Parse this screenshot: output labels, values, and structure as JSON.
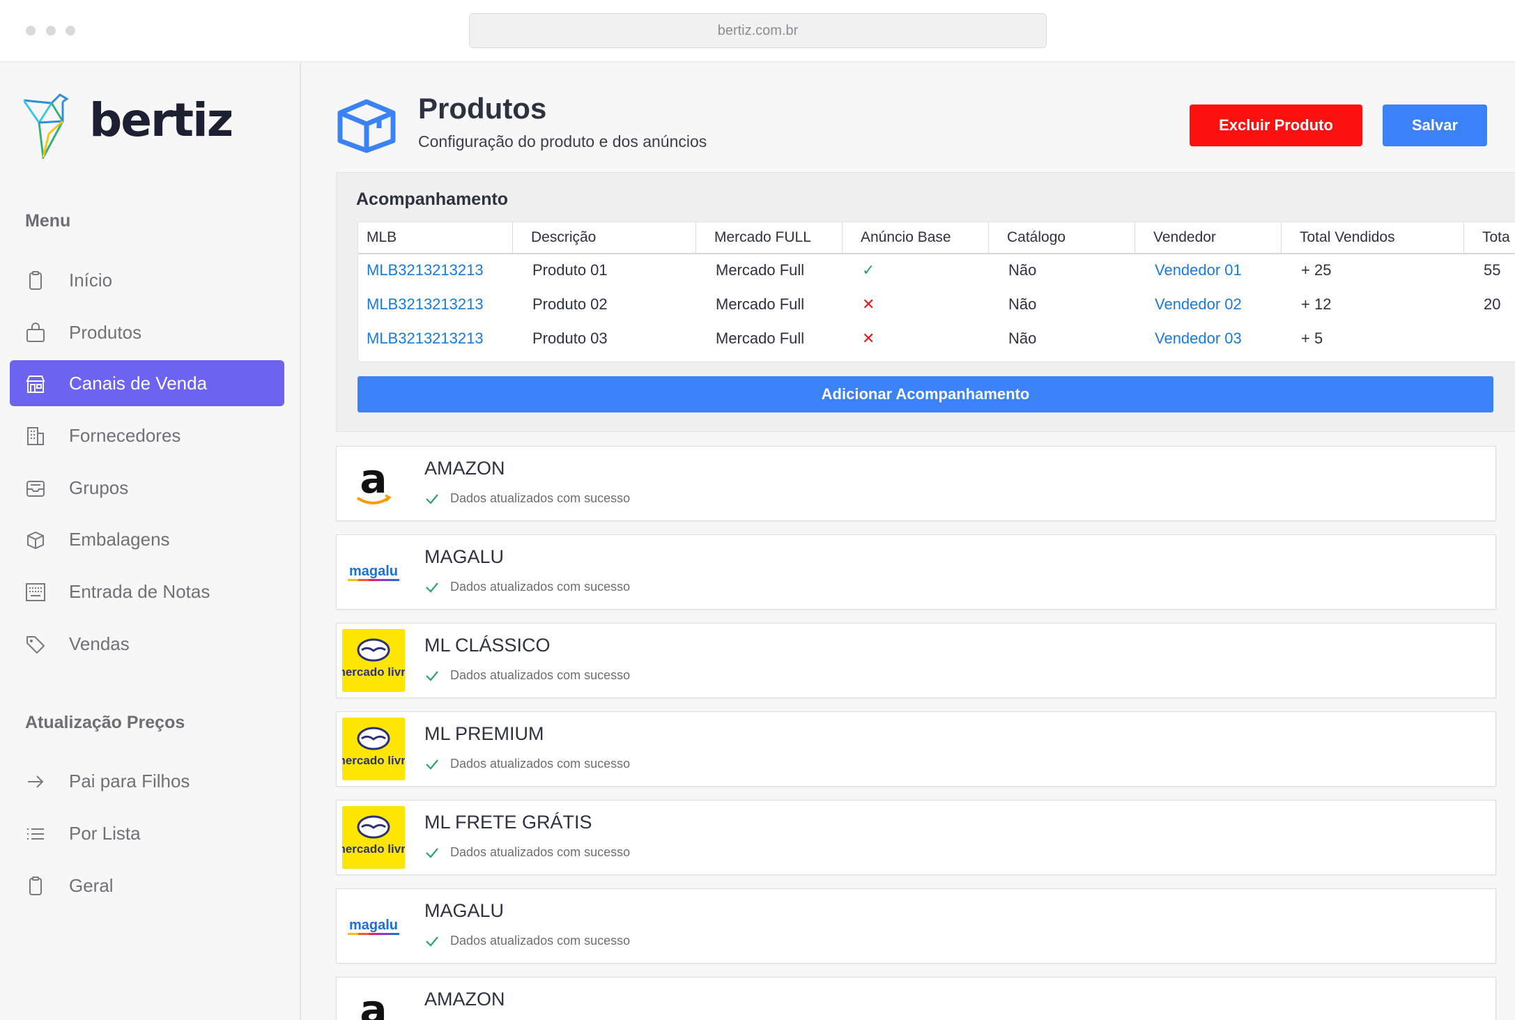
{
  "browser": {
    "url": "bertiz.com.br"
  },
  "brand": {
    "name": "bertiz"
  },
  "sidebar": {
    "menu_title": "Menu",
    "items": [
      {
        "label": "Início",
        "icon": "clipboard-icon"
      },
      {
        "label": "Produtos",
        "icon": "bag-icon"
      },
      {
        "label": "Canais de Venda",
        "icon": "store-icon",
        "active": true
      },
      {
        "label": "Fornecedores",
        "icon": "building-icon"
      },
      {
        "label": "Grupos",
        "icon": "inbox-icon"
      },
      {
        "label": "Embalagens",
        "icon": "package-icon"
      },
      {
        "label": "Entrada de Notas",
        "icon": "keyboard-icon"
      },
      {
        "label": "Vendas",
        "icon": "tag-icon"
      }
    ],
    "prices_title": "Atualização Preços",
    "price_items": [
      {
        "label": "Pai para Filhos",
        "icon": "arrow-right-icon"
      },
      {
        "label": "Por Lista",
        "icon": "list-icon"
      },
      {
        "label": "Geral",
        "icon": "clipboard-icon"
      }
    ]
  },
  "header": {
    "title": "Produtos",
    "subtitle": "Configuração do produto e dos anúncios",
    "delete_label": "Excluir Produto",
    "save_label": "Salvar"
  },
  "tracking": {
    "title": "Acompanhamento",
    "columns": [
      "MLB",
      "Descrição",
      "Mercado FULL",
      "Anúncio Base",
      "Catálogo",
      "Vendedor",
      "Total Vendidos",
      "Tota"
    ],
    "rows": [
      {
        "mlb": "MLB3213213213",
        "descricao": "Produto 01",
        "full": "Mercado Full",
        "base": "✓",
        "base_ok": true,
        "catalogo": "Não",
        "vendedor": "Vendedor 01",
        "vendidos": "+ 25",
        "total": "55"
      },
      {
        "mlb": "MLB3213213213",
        "descricao": "Produto 02",
        "full": "Mercado Full",
        "base": "✕",
        "base_ok": false,
        "catalogo": "Não",
        "vendedor": "Vendedor 02",
        "vendidos": "+ 12",
        "total": "20"
      },
      {
        "mlb": "MLB3213213213",
        "descricao": "Produto 03",
        "full": "Mercado Full",
        "base": "✕",
        "base_ok": false,
        "catalogo": "Não",
        "vendedor": "Vendedor 03",
        "vendidos": "+ 5",
        "total": ""
      }
    ],
    "add_label": "Adicionar Acompanhamento"
  },
  "channels": [
    {
      "name": "AMAZON",
      "logo": "amazon-logo",
      "logo_text": "a",
      "status": "Dados atualizados com sucesso"
    },
    {
      "name": "MAGALU",
      "logo": "magalu-logo",
      "logo_text": "magalu",
      "status": "Dados atualizados com sucesso"
    },
    {
      "name": "ML CLÁSSICO",
      "logo": "mercado-livre-logo",
      "logo_text": "mercado livre",
      "status": "Dados atualizados com sucesso"
    },
    {
      "name": "ML PREMIUM",
      "logo": "mercado-livre-logo",
      "logo_text": "mercado livre",
      "status": "Dados atualizados com sucesso"
    },
    {
      "name": "ML FRETE GRÁTIS",
      "logo": "mercado-livre-logo",
      "logo_text": "mercado livre",
      "status": "Dados atualizados com sucesso"
    },
    {
      "name": "MAGALU",
      "logo": "magalu-logo",
      "logo_text": "magalu",
      "status": "Dados atualizados com sucesso"
    },
    {
      "name": "AMAZON",
      "logo": "amazon-logo",
      "logo_text": "a",
      "status": ""
    }
  ],
  "colors": {
    "accent": "#6c63f0",
    "primary": "#3b82f6",
    "danger": "#ff1010",
    "link": "#1b7ad6",
    "success": "#2aa26a",
    "error": "#e41818",
    "ml_yellow": "#ffe600"
  }
}
